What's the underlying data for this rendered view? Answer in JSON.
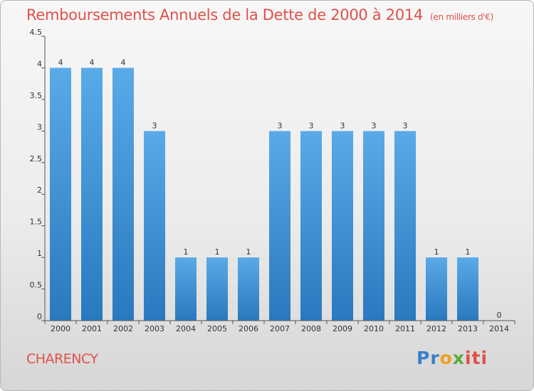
{
  "chart_data": {
    "type": "bar",
    "title": "Remboursements Annuels de la Dette de 2000 à 2014",
    "subtitle": "(en milliers d'€)",
    "categories": [
      "2000",
      "2001",
      "2002",
      "2003",
      "2004",
      "2005",
      "2006",
      "2007",
      "2008",
      "2009",
      "2010",
      "2011",
      "2012",
      "2013",
      "2014"
    ],
    "values": [
      4,
      4,
      4,
      3,
      1,
      1,
      1,
      3,
      3,
      3,
      3,
      3,
      1,
      1,
      0
    ],
    "value_labels": [
      "4",
      "4",
      "4",
      "3",
      "1",
      "1",
      "1",
      "3",
      "3",
      "3",
      "3",
      "3",
      "1",
      "1",
      "0"
    ],
    "ylim": [
      0,
      4.5
    ],
    "yticks": [
      0,
      0.5,
      1,
      1.5,
      2,
      2.5,
      3,
      3.5,
      4,
      4.5
    ],
    "ytick_labels": [
      "0",
      "0.5",
      "1",
      "1.5",
      "2",
      "2.5",
      "3",
      "3.5",
      "4",
      "4.5"
    ],
    "xlabel": "",
    "ylabel": "",
    "bar_color_top": "#5aaae8",
    "bar_color_bottom": "#2a78be"
  },
  "footer": {
    "city": "CHARENCY",
    "logo_parts": [
      "Pr",
      "o",
      "x",
      "iti"
    ]
  },
  "colors": {
    "title": "#e0504a"
  }
}
